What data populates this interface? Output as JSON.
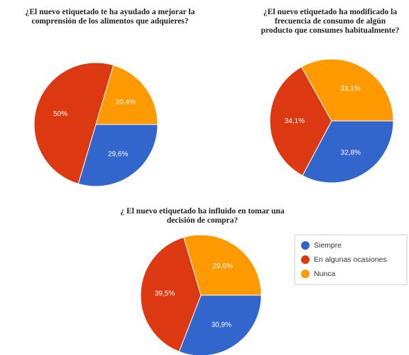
{
  "chart_data": [
    {
      "type": "pie",
      "title": [
        "¿El nuevo etiquetado te ha ayudado a mejorar la",
        "comprensión de los alimentos que adquieres?"
      ],
      "values": [
        29.6,
        50,
        20.4
      ],
      "value_labels": [
        "29,6%",
        "50%",
        "20,4%"
      ]
    },
    {
      "type": "pie",
      "title": [
        "¿El nuevo etiquetado ha modificado la",
        "frecuencia de consumo de algún",
        "producto que consumes habitualmente?"
      ],
      "values": [
        32.8,
        34.1,
        33.1
      ],
      "value_labels": [
        "32,8%",
        "34,1%",
        "33,1%"
      ]
    },
    {
      "type": "pie",
      "title": [
        "¿ El nuevo etiquetado ha influido en tomar una",
        "decisión de compra?"
      ],
      "values": [
        30.9,
        39.5,
        29.6
      ],
      "value_labels": [
        "30,9%",
        "39,5%",
        "29,6%"
      ]
    }
  ],
  "legend": {
    "labels": [
      "Siempre",
      "En algunas ocasiones",
      "Nunca"
    ],
    "colors": [
      "#3366cc",
      "#dc3912",
      "#ff9900"
    ]
  }
}
